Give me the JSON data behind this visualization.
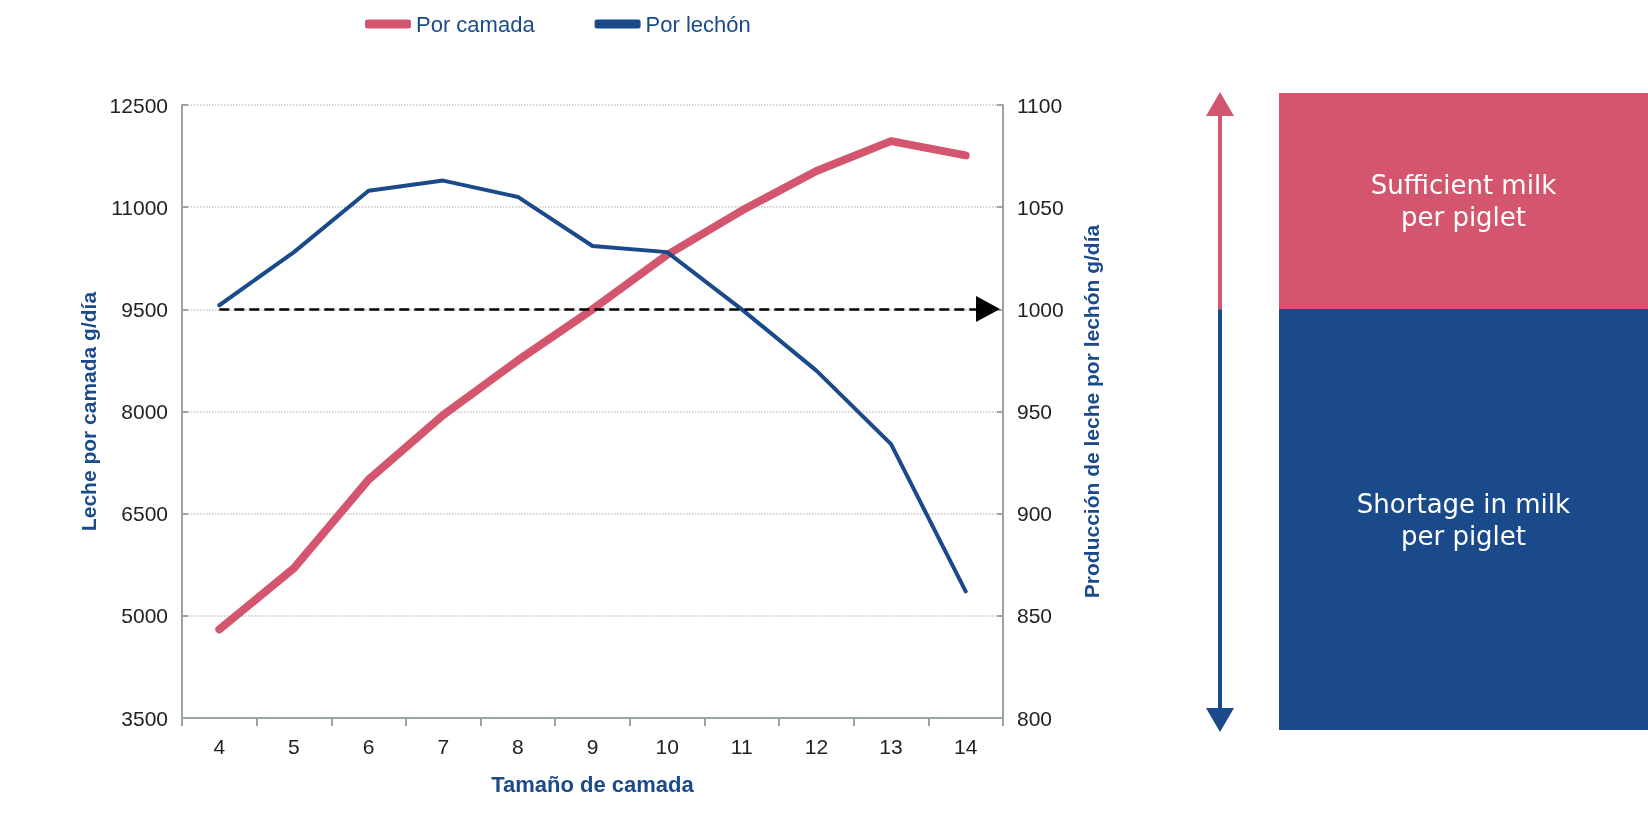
{
  "chart_data": {
    "type": "line",
    "xlabel": "Tamaño de camada",
    "ylabel": "Leche por camada g/día",
    "y2label": "Producción de leche por lechón g/día",
    "categories": [
      "4",
      "5",
      "6",
      "7",
      "8",
      "9",
      "10",
      "11",
      "12",
      "13",
      "14"
    ],
    "series": [
      {
        "name": "Por camada",
        "color": "#d4566e",
        "values": [
          4800,
          5700,
          7000,
          7950,
          8750,
          9500,
          10300,
          10950,
          11530,
          11970,
          11760
        ]
      },
      {
        "name": "Por lechón",
        "color": "#1a4a8a",
        "axis": "y2",
        "values": [
          1002,
          1028,
          1058,
          1063,
          1055,
          1031,
          1028,
          1000,
          970,
          934,
          862
        ]
      }
    ],
    "ylim": [
      3500,
      12500
    ],
    "yticks": [
      3500,
      5000,
      6500,
      8000,
      9500,
      11000,
      12500
    ],
    "y2lim": [
      800,
      1100
    ],
    "y2ticks": [
      800,
      850,
      900,
      950,
      1000,
      1050,
      1100
    ],
    "ref_lines": [
      {
        "axis": "y2",
        "value": 1000,
        "color": "#000000",
        "line_style": "dashed"
      }
    ],
    "annotations": [
      "Sufficient milk per piglet",
      "Shortage in milk per piglet"
    ],
    "grid": "y",
    "legend": "top",
    "marker": "none",
    "line_style": "solid"
  }
}
